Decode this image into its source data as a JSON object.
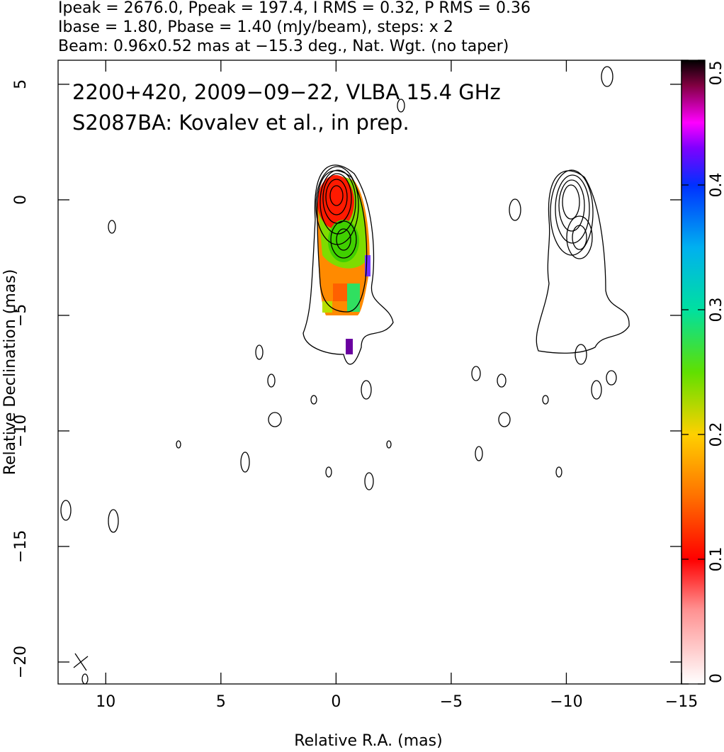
{
  "chart_data": {
    "type": "contour_map",
    "header": [
      "Ipeak = 2676.0, Ppeak = 197.4, I RMS = 0.32, P RMS = 0.36",
      "Ibase = 1.80, Pbase = 1.40 (mJy/beam), steps: x 2",
      "Beam: 0.96x0.52 mas at −15.3 deg., Nat. Wgt. (no taper)"
    ],
    "annotations": [
      "2200+420, 2009−09−22, VLBA 15.4 GHz",
      "S2087BA: Kovalev et al., in prep."
    ],
    "x_label": "Relative R.A. (mas)",
    "y_label": "Relative Declination (mas)",
    "xlim": [
      12.07,
      -15
    ],
    "xticks": [
      10,
      5,
      0,
      {
        "value": -5,
        "label": "−5"
      },
      {
        "value": -10,
        "label": "−10"
      },
      {
        "value": -15,
        "label": "−15"
      }
    ],
    "ylim": [
      -20.95,
      6.04
    ],
    "yticks": [
      5,
      0,
      {
        "value": -5,
        "label": "−5"
      },
      {
        "value": -10,
        "label": "−10"
      },
      {
        "value": -15,
        "label": "−15"
      },
      {
        "value": -20,
        "label": "−20"
      }
    ],
    "colorbar": {
      "lim": [
        0,
        0.5
      ],
      "ticks": [
        0,
        0.1,
        0.2,
        0.3,
        0.4,
        0.5
      ]
    }
  }
}
